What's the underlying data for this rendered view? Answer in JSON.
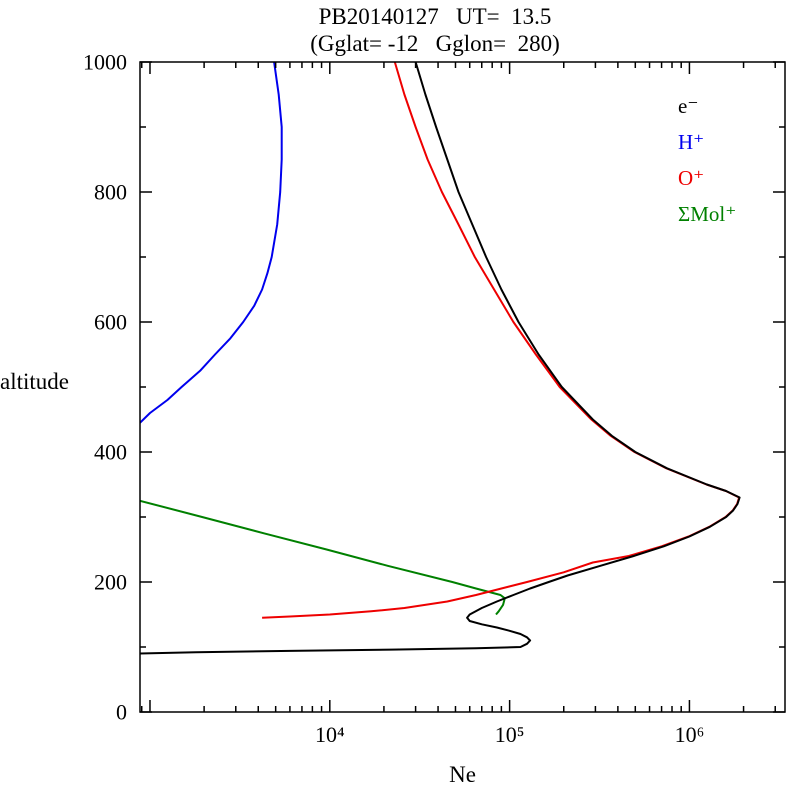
{
  "chart_data": {
    "type": "line",
    "title": "PB20140127   UT=  13.5",
    "subtitle": "(Gglat= -12   Gglon=  280)",
    "xlabel": "Ne",
    "ylabel": "altitude",
    "x_scale": "log",
    "xlim": [
      880,
      3400000
    ],
    "ylim": [
      0,
      1000
    ],
    "grid": false,
    "legend_position": "inside-top-right",
    "x_ticks": [
      {
        "value": 10000,
        "label": "10⁴"
      },
      {
        "value": 100000,
        "label": "10⁵"
      },
      {
        "value": 1000000,
        "label": "10⁶"
      }
    ],
    "y_ticks": [
      {
        "value": 0,
        "label": "0"
      },
      {
        "value": 200,
        "label": "200"
      },
      {
        "value": 400,
        "label": "400"
      },
      {
        "value": 600,
        "label": "600"
      },
      {
        "value": 800,
        "label": "800"
      },
      {
        "value": 1000,
        "label": "1000"
      }
    ],
    "legend": [
      {
        "label": "e⁻",
        "color": "#000000"
      },
      {
        "label": "H⁺",
        "color": "#0000ee"
      },
      {
        "label": "O⁺",
        "color": "#ee0000"
      },
      {
        "label": "ΣMol⁺",
        "color": "#008000"
      }
    ],
    "series": [
      {
        "name": "e-",
        "color": "#000000",
        "points": [
          [
            30000,
            1000
          ],
          [
            34000,
            950
          ],
          [
            39000,
            900
          ],
          [
            45000,
            850
          ],
          [
            52000,
            800
          ],
          [
            62000,
            750
          ],
          [
            74000,
            700
          ],
          [
            90000,
            650
          ],
          [
            112000,
            600
          ],
          [
            145000,
            550
          ],
          [
            195000,
            500
          ],
          [
            290000,
            450
          ],
          [
            370000,
            425
          ],
          [
            500000,
            400
          ],
          [
            750000,
            375
          ],
          [
            1250000,
            350
          ],
          [
            1600000,
            340
          ],
          [
            1900000,
            330
          ],
          [
            1850000,
            320
          ],
          [
            1750000,
            310
          ],
          [
            1600000,
            300
          ],
          [
            1300000,
            285
          ],
          [
            1000000,
            270
          ],
          [
            720000,
            255
          ],
          [
            490000,
            240
          ],
          [
            320000,
            225
          ],
          [
            210000,
            210
          ],
          [
            165000,
            200
          ],
          [
            130000,
            190
          ],
          [
            105000,
            180
          ],
          [
            85000,
            170
          ],
          [
            70000,
            160
          ],
          [
            60000,
            150
          ],
          [
            58000,
            145
          ],
          [
            60000,
            140
          ],
          [
            70000,
            135
          ],
          [
            85000,
            130
          ],
          [
            100000,
            125
          ],
          [
            115000,
            120
          ],
          [
            125000,
            115
          ],
          [
            130000,
            110
          ],
          [
            125000,
            105
          ],
          [
            115000,
            100
          ],
          [
            65000,
            98
          ],
          [
            22000,
            96
          ],
          [
            6000,
            94
          ],
          [
            1800,
            92
          ],
          [
            880,
            90
          ]
        ]
      },
      {
        "name": "H+",
        "color": "#0000ee",
        "points": [
          [
            880,
            445
          ],
          [
            1000,
            460
          ],
          [
            1250,
            480
          ],
          [
            1500,
            500
          ],
          [
            1900,
            525
          ],
          [
            2300,
            550
          ],
          [
            2800,
            575
          ],
          [
            3300,
            600
          ],
          [
            3800,
            625
          ],
          [
            4200,
            650
          ],
          [
            4500,
            675
          ],
          [
            4750,
            700
          ],
          [
            5100,
            750
          ],
          [
            5300,
            800
          ],
          [
            5400,
            850
          ],
          [
            5400,
            900
          ],
          [
            5200,
            950
          ],
          [
            4900,
            1000
          ]
        ]
      },
      {
        "name": "O+",
        "color": "#ee0000",
        "points": [
          [
            23000,
            1000
          ],
          [
            26000,
            950
          ],
          [
            30000,
            900
          ],
          [
            35000,
            850
          ],
          [
            42000,
            800
          ],
          [
            52000,
            750
          ],
          [
            64000,
            700
          ],
          [
            82000,
            650
          ],
          [
            105000,
            600
          ],
          [
            140000,
            550
          ],
          [
            190000,
            500
          ],
          [
            285000,
            450
          ],
          [
            365000,
            425
          ],
          [
            495000,
            400
          ],
          [
            745000,
            375
          ],
          [
            1245000,
            350
          ],
          [
            1595000,
            340
          ],
          [
            1890000,
            330
          ],
          [
            1840000,
            320
          ],
          [
            1740000,
            310
          ],
          [
            1590000,
            300
          ],
          [
            1290000,
            285
          ],
          [
            990000,
            270
          ],
          [
            700000,
            255
          ],
          [
            460000,
            240
          ],
          [
            290000,
            230
          ],
          [
            200000,
            215
          ],
          [
            125000,
            200
          ],
          [
            90000,
            190
          ],
          [
            65000,
            180
          ],
          [
            45000,
            170
          ],
          [
            26000,
            160
          ],
          [
            17000,
            155
          ],
          [
            10000,
            150
          ],
          [
            6000,
            147
          ],
          [
            4200,
            145
          ]
        ]
      },
      {
        "name": "Mol+",
        "color": "#008000",
        "points": [
          [
            880,
            325
          ],
          [
            1950,
            300
          ],
          [
            4300,
            275
          ],
          [
            9600,
            250
          ],
          [
            21000,
            225
          ],
          [
            48000,
            200
          ],
          [
            65000,
            190
          ],
          [
            89000,
            180
          ],
          [
            94000,
            175
          ],
          [
            92000,
            165
          ],
          [
            87000,
            155
          ],
          [
            84000,
            150
          ]
        ]
      }
    ]
  }
}
